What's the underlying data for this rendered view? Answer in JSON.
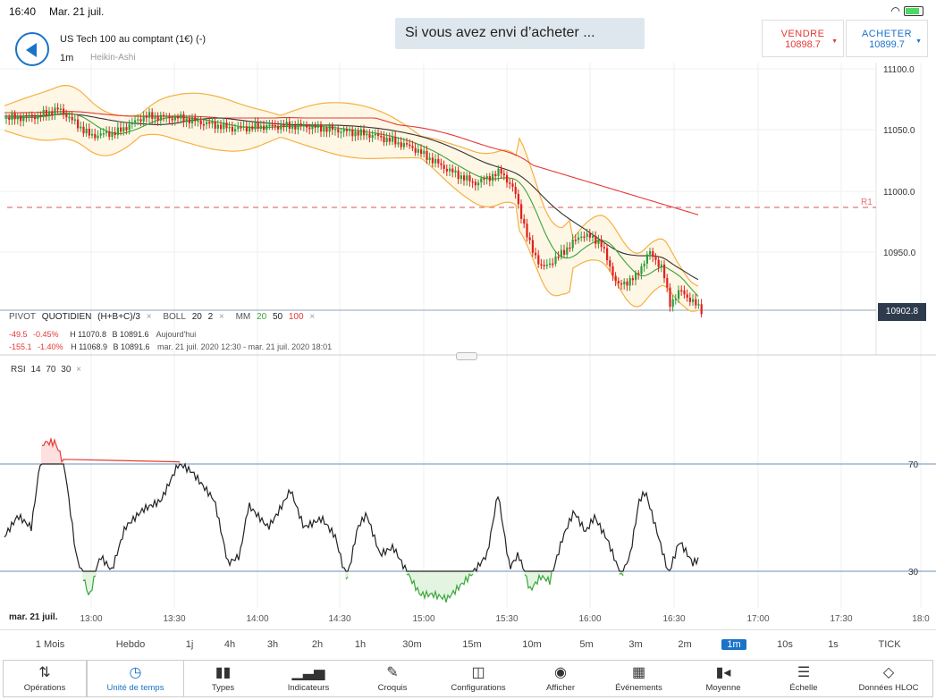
{
  "status": {
    "time": "16:40",
    "date": "Mar. 21 juil."
  },
  "header": {
    "instrument": "US Tech 100 au comptant (1€) (-)",
    "timeframe": "1m",
    "chart_type": "Heikin-Ashi"
  },
  "tooltip": "Si vous avez envi d’acheter ...",
  "trade": {
    "sell_label": "VENDRE",
    "sell_price": "10898.7",
    "buy_label": "ACHETER",
    "buy_price": "10899.7"
  },
  "legend": {
    "pivot": "PIVOT",
    "quotidien": "QUOTIDIEN",
    "formula": "(H+B+C)/3",
    "boll": "BOLL",
    "boll_p1": "20",
    "boll_p2": "2",
    "mm": "MM",
    "mm_20": "20",
    "mm_50": "50",
    "mm_100": "100",
    "row1": {
      "chg": "-49.5",
      "pct": "-0.45%",
      "h": "H 11070.8",
      "b": "B 10891.6",
      "note": "Aujourd'hui"
    },
    "row2": {
      "chg": "-155.1",
      "pct": "-1.40%",
      "h": "H 11068.9",
      "b": "B 10891.6",
      "note": "mar. 21 juil. 2020 12:30 - mar. 21 juil. 2020 18:01"
    },
    "close_glyph": "×"
  },
  "rsi": {
    "label": "RSI",
    "p1": "14",
    "p2": "70",
    "p3": "30",
    "level_high": "70",
    "level_low": "30"
  },
  "price_axis": {
    "ticks": [
      "11100.0",
      "11050.0",
      "11000.0",
      "10950.0"
    ],
    "last_price": "10902.8",
    "r1_label": "R1"
  },
  "time_axis": {
    "date_badge": "mar. 21 juil.",
    "ticks": [
      "13:00",
      "13:30",
      "14:00",
      "14:30",
      "15:00",
      "15:30",
      "16:00",
      "16:30",
      "17:00",
      "17:30",
      "18:0"
    ]
  },
  "periods": [
    "1 Mois",
    "Hebdo",
    "1j",
    "4h",
    "3h",
    "2h",
    "1h",
    "30m",
    "15m",
    "10m",
    "5m",
    "3m",
    "2m",
    "1m",
    "10s",
    "1s",
    "TICK"
  ],
  "selected_period": "1m",
  "toolbar": [
    {
      "label": "Opérations",
      "icon": "arrows-updown-icon"
    },
    {
      "label": "Unité de temps",
      "icon": "clock-icon"
    },
    {
      "label": "Types",
      "icon": "candles-icon"
    },
    {
      "label": "Indicateurs",
      "icon": "bar-chart-icon"
    },
    {
      "label": "Croquis",
      "icon": "pencil-icon"
    },
    {
      "label": "Configurations",
      "icon": "layout-icon"
    },
    {
      "label": "Afficher",
      "icon": "eye-icon"
    },
    {
      "label": "Événements",
      "icon": "calendar-icon"
    },
    {
      "label": "Moyenne",
      "icon": "average-icon"
    },
    {
      "label": "Échelle",
      "icon": "scale-icon"
    },
    {
      "label": "Données HLOC",
      "icon": "crosshair-icon"
    }
  ],
  "colors": {
    "accent": "#1a73c9",
    "up": "#2e9e3a",
    "down": "#e0201b",
    "boll": "#f5b041",
    "mm20": "#3aa53a",
    "mm50": "#333333",
    "mm100": "#e53935",
    "rsi": "#222222",
    "rsi_level": "#6b8fb5"
  }
}
